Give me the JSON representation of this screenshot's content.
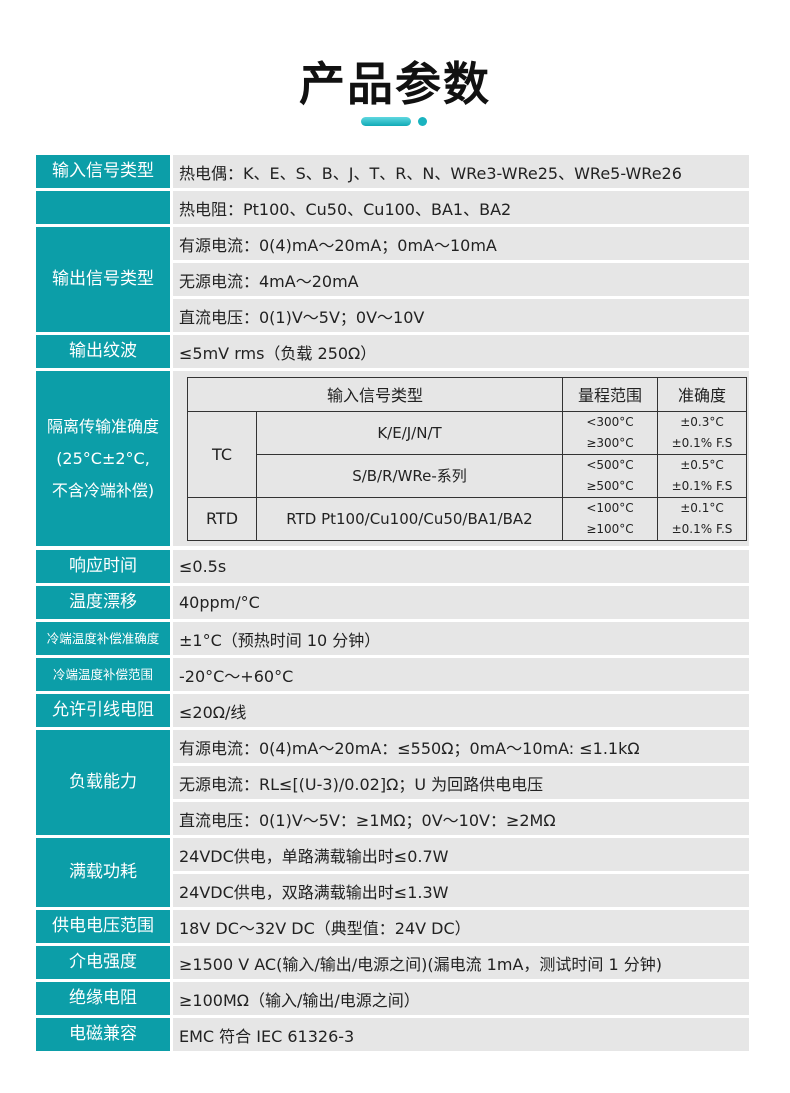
{
  "title": "产品参数",
  "colors": {
    "label_bg": "#0c9ea8",
    "value_bg": "#e6e6e6"
  },
  "rows": [
    {
      "label": "输入信号类型",
      "values": [
        "热电偶：K、E、S、B、J、T、R、N、WRe3-WRe25、WRe5-WRe26"
      ]
    },
    {
      "label": "",
      "values": [
        "热电阻：Pt100、Cu50、Cu100、BA1、BA2"
      ]
    },
    {
      "label": "输出信号类型",
      "values": [
        "有源电流：0(4)mA～20mA；0mA～10mA",
        "无源电流：4mA～20mA",
        "直流电压：0(1)V～5V；0V～10V"
      ]
    },
    {
      "label": "输出纹波",
      "values": [
        "≤5mV rms（负载 250Ω）"
      ]
    }
  ],
  "accuracy": {
    "label_lines": [
      "隔离传输准确度",
      "(25°C±2°C,",
      "不含冷端补偿)"
    ],
    "headers": [
      "输入信号类型",
      "量程范围",
      "准确度"
    ],
    "tc_label": "TC",
    "rtd_label": "RTD",
    "groups": [
      {
        "type": "K/E/J/N/T",
        "ranges": [
          "<300°C",
          "≥300°C"
        ],
        "accuracy": [
          "±0.3°C",
          "±0.1% F.S"
        ]
      },
      {
        "type": "S/B/R/WRe-系列",
        "ranges": [
          "<500°C",
          "≥500°C"
        ],
        "accuracy": [
          "±0.5°C",
          "±0.1% F.S"
        ]
      },
      {
        "type": "RTD Pt100/Cu100/Cu50/BA1/BA2",
        "ranges": [
          "<100°C",
          "≥100°C"
        ],
        "accuracy": [
          "±0.1°C",
          "±0.1% F.S"
        ]
      }
    ]
  },
  "rows2": [
    {
      "label": "响应时间",
      "values": [
        "≤0.5s"
      ]
    },
    {
      "label": "温度漂移",
      "values": [
        "40ppm/°C"
      ]
    },
    {
      "label": "冷端温度补偿准确度",
      "small": true,
      "values": [
        "±1°C（预热时间 10 分钟）"
      ]
    },
    {
      "label": "冷端温度补偿范围",
      "small": true,
      "values": [
        "-20°C～+60°C"
      ]
    },
    {
      "label": "允许引线电阻",
      "values": [
        "≤20Ω/线"
      ]
    },
    {
      "label": "负载能力",
      "values": [
        "有源电流：0(4)mA～20mA：≤550Ω；0mA～10mA: ≤1.1kΩ",
        "无源电流：RL≤[(U-3)/0.02]Ω；U 为回路供电电压",
        "直流电压：0(1)V～5V：≥1MΩ；0V～10V：≥2MΩ"
      ]
    },
    {
      "label": "满载功耗",
      "values": [
        "24VDC供电，单路满载输出时≤0.7W",
        "24VDC供电，双路满载输出时≤1.3W"
      ]
    },
    {
      "label": "供电电压范围",
      "values": [
        "18V DC～32V DC（典型值：24V DC）"
      ]
    },
    {
      "label": "介电强度",
      "values": [
        "≥1500 V AC(输入/输出/电源之间)(漏电流 1mA，测试时间 1 分钟)"
      ]
    },
    {
      "label": "绝缘电阻",
      "values": [
        "≥100MΩ（输入/输出/电源之间）"
      ]
    },
    {
      "label": "电磁兼容",
      "values": [
        "EMC 符合 IEC 61326-3"
      ]
    }
  ]
}
